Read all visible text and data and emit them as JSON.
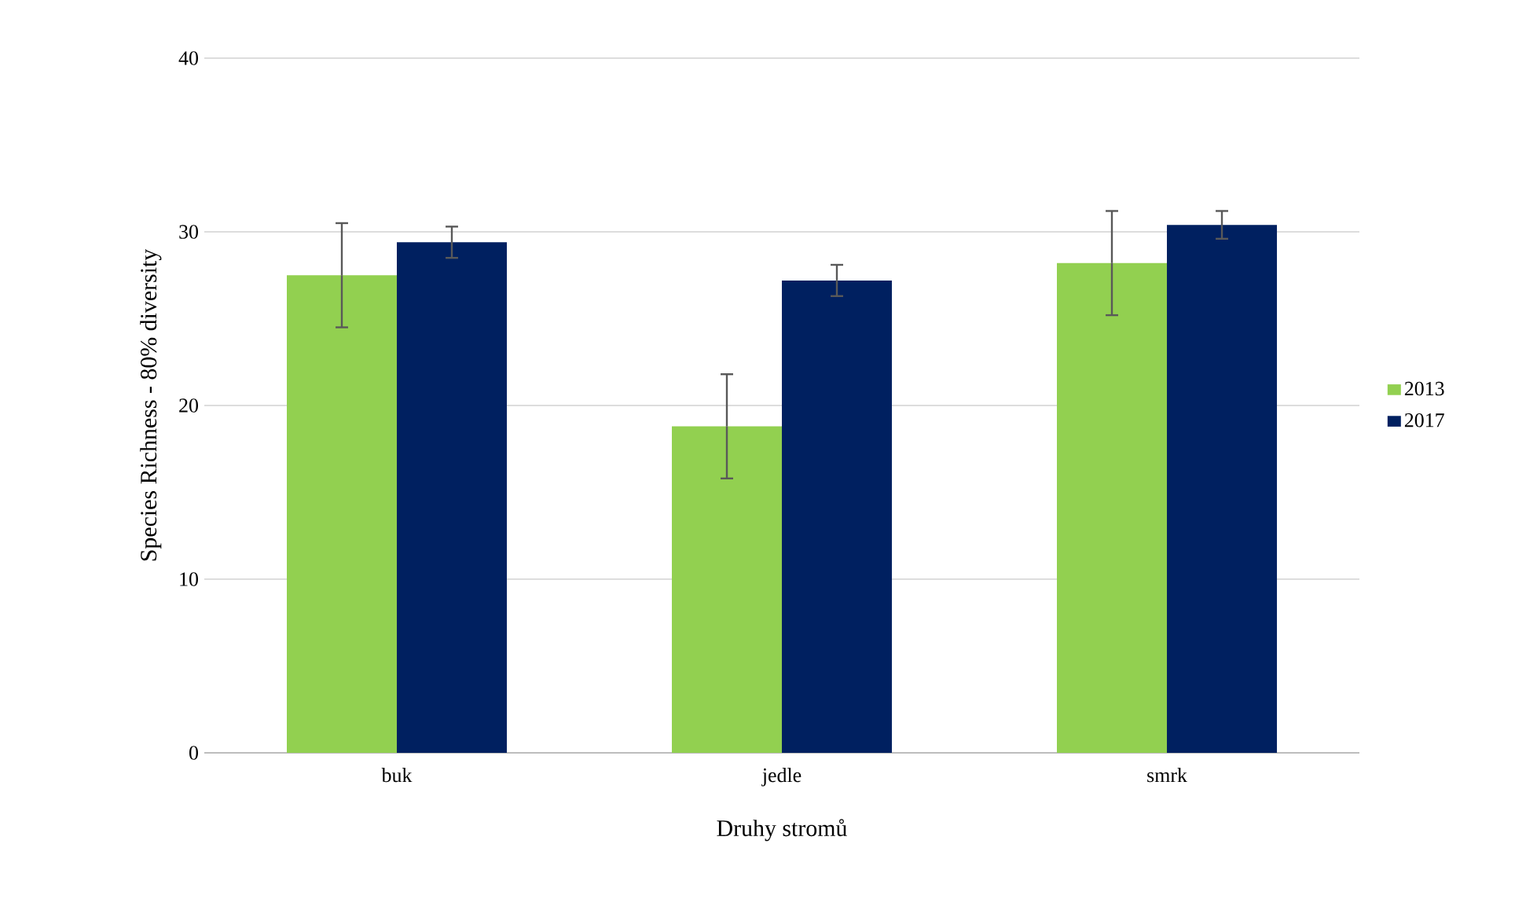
{
  "chart_data": {
    "type": "bar",
    "xlabel": "Druhy stromů",
    "ylabel": "Species Richness - 80% diversity",
    "categories": [
      "buk",
      "jedle",
      "smrk"
    ],
    "series": [
      {
        "name": "2013",
        "color": "#92d050",
        "values": [
          27.5,
          18.8,
          28.2
        ],
        "errors": [
          3.0,
          3.0,
          3.0
        ]
      },
      {
        "name": "2017",
        "color": "#002060",
        "values": [
          29.4,
          27.2,
          30.4
        ],
        "errors": [
          0.9,
          0.9,
          0.8
        ]
      }
    ],
    "ylim": [
      0,
      40
    ],
    "yticks": [
      0,
      10,
      20,
      30,
      40
    ],
    "grid": "y",
    "legend": "right"
  }
}
